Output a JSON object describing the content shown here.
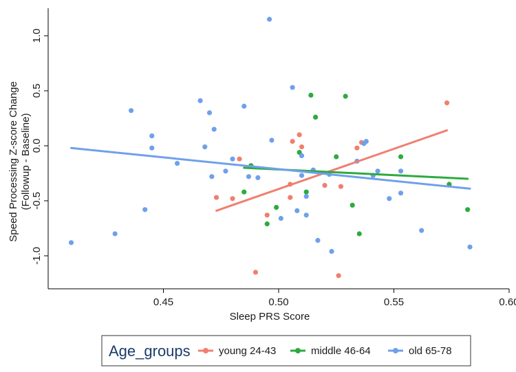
{
  "chart_data": {
    "type": "scatter",
    "title": "",
    "xlabel": "Sleep PRS Score",
    "ylabel": "Speed Processing Z-score Change",
    "ylabel2": "(Followup - Baseline)",
    "xlim": [
      0.4,
      0.6
    ],
    "ylim": [
      -1.3,
      1.25
    ],
    "xticks": [
      0.45,
      0.5,
      0.55,
      0.6
    ],
    "xtick_labels": [
      "0.45",
      "0.50",
      "0.55",
      "0.60"
    ],
    "yticks": [
      -1.0,
      -0.5,
      0.0,
      0.5,
      1.0
    ],
    "ytick_labels": [
      "-1.0",
      "-0.5",
      "0.0",
      "0.5",
      "1.0"
    ],
    "grid": false,
    "legend": {
      "title": "Age_groups",
      "placement": "bottom",
      "entries": [
        "young 24-43",
        "middle 46-64",
        "old 65-78"
      ]
    },
    "series": [
      {
        "name": "young 24-43",
        "color": "#f07f6e",
        "points": [
          [
            0.473,
            -0.47
          ],
          [
            0.48,
            -0.48
          ],
          [
            0.483,
            -0.12
          ],
          [
            0.49,
            -1.15
          ],
          [
            0.495,
            -0.63
          ],
          [
            0.505,
            -0.35
          ],
          [
            0.505,
            -0.47
          ],
          [
            0.506,
            0.04
          ],
          [
            0.509,
            0.1
          ],
          [
            0.51,
            -0.01
          ],
          [
            0.52,
            -0.36
          ],
          [
            0.526,
            -1.18
          ],
          [
            0.527,
            -0.37
          ],
          [
            0.534,
            -0.02
          ],
          [
            0.536,
            0.03
          ],
          [
            0.573,
            0.39
          ]
        ],
        "fit": [
          [
            0.473,
            -0.59
          ],
          [
            0.573,
            0.14
          ]
        ]
      },
      {
        "name": "middle 46-64",
        "color": "#2eaa3e",
        "points": [
          [
            0.485,
            -0.42
          ],
          [
            0.488,
            -0.18
          ],
          [
            0.495,
            -0.71
          ],
          [
            0.499,
            -0.56
          ],
          [
            0.509,
            -0.06
          ],
          [
            0.512,
            -0.42
          ],
          [
            0.514,
            0.46
          ],
          [
            0.516,
            0.26
          ],
          [
            0.525,
            -0.1
          ],
          [
            0.529,
            0.45
          ],
          [
            0.532,
            -0.54
          ],
          [
            0.535,
            -0.8
          ],
          [
            0.553,
            -0.1
          ],
          [
            0.574,
            -0.35
          ],
          [
            0.582,
            -0.58
          ]
        ],
        "fit": [
          [
            0.485,
            -0.2
          ],
          [
            0.582,
            -0.3
          ]
        ]
      },
      {
        "name": "old 65-78",
        "color": "#6fa0ea",
        "points": [
          [
            0.41,
            -0.88
          ],
          [
            0.429,
            -0.8
          ],
          [
            0.436,
            0.32
          ],
          [
            0.442,
            -0.58
          ],
          [
            0.445,
            0.09
          ],
          [
            0.445,
            -0.02
          ],
          [
            0.456,
            -0.16
          ],
          [
            0.466,
            0.41
          ],
          [
            0.468,
            -0.01
          ],
          [
            0.47,
            0.3
          ],
          [
            0.471,
            -0.28
          ],
          [
            0.472,
            0.15
          ],
          [
            0.477,
            -0.23
          ],
          [
            0.48,
            -0.12
          ],
          [
            0.485,
            0.36
          ],
          [
            0.487,
            -0.28
          ],
          [
            0.491,
            -0.29
          ],
          [
            0.496,
            1.15
          ],
          [
            0.497,
            0.05
          ],
          [
            0.501,
            -0.66
          ],
          [
            0.506,
            0.53
          ],
          [
            0.508,
            -0.59
          ],
          [
            0.51,
            -0.09
          ],
          [
            0.51,
            -0.27
          ],
          [
            0.512,
            -0.63
          ],
          [
            0.512,
            -0.46
          ],
          [
            0.515,
            -0.22
          ],
          [
            0.517,
            -0.86
          ],
          [
            0.522,
            -0.26
          ],
          [
            0.523,
            -0.96
          ],
          [
            0.534,
            -0.14
          ],
          [
            0.537,
            0.02
          ],
          [
            0.538,
            0.04
          ],
          [
            0.541,
            -0.27
          ],
          [
            0.543,
            -0.23
          ],
          [
            0.548,
            -0.48
          ],
          [
            0.553,
            -0.23
          ],
          [
            0.553,
            -0.43
          ],
          [
            0.562,
            -0.77
          ],
          [
            0.583,
            -0.92
          ]
        ],
        "fit": [
          [
            0.41,
            -0.02
          ],
          [
            0.583,
            -0.39
          ]
        ]
      }
    ]
  }
}
